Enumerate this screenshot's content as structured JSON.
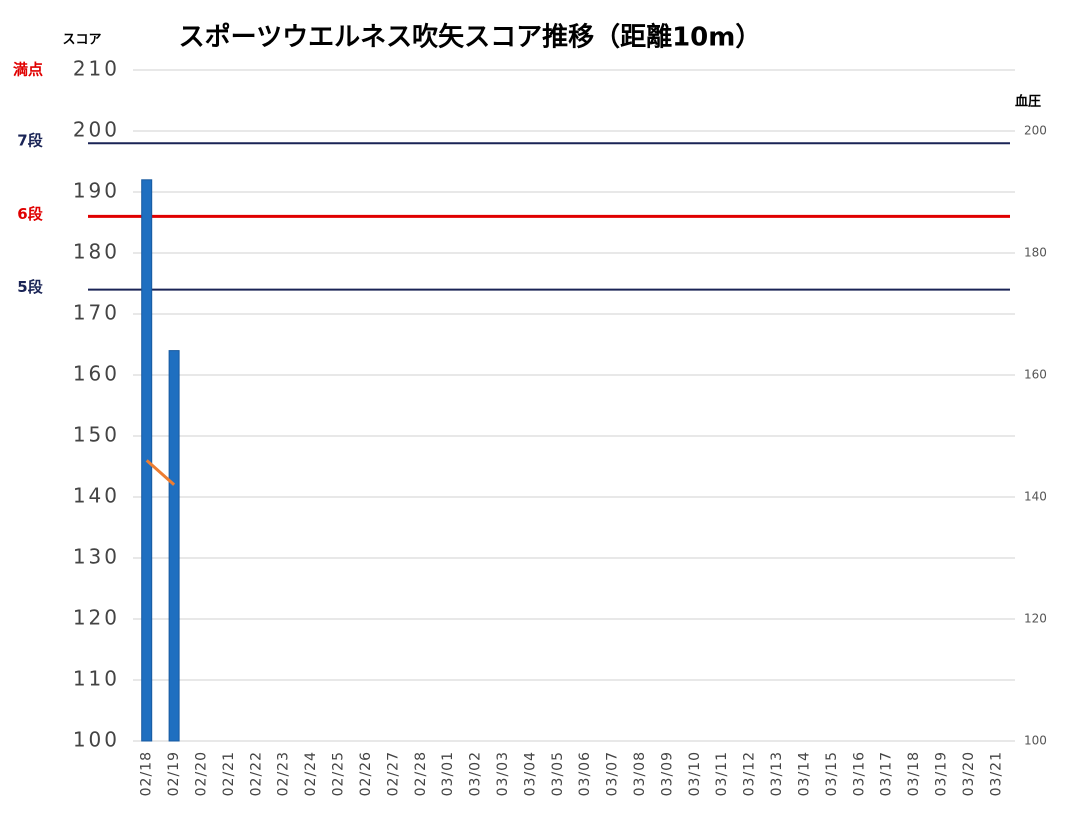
{
  "chart_data": {
    "type": "bar",
    "title": "スポーツウエルネス吹矢スコア推移（距離10m）",
    "y_label": "スコア",
    "y2_label": "血圧",
    "categories": [
      "02/18",
      "02/19",
      "02/20",
      "02/21",
      "02/22",
      "02/23",
      "02/24",
      "02/25",
      "02/26",
      "02/27",
      "02/28",
      "03/01",
      "03/02",
      "03/03",
      "03/04",
      "03/05",
      "03/06",
      "03/07",
      "03/08",
      "03/09",
      "03/10",
      "03/11",
      "03/12",
      "03/13",
      "03/14",
      "03/15",
      "03/16",
      "03/17",
      "03/18",
      "03/19",
      "03/20",
      "03/21"
    ],
    "series": [
      {
        "name": "スコア",
        "type": "bar",
        "color": "#1f6fc0",
        "values": [
          192,
          164,
          null,
          null,
          null,
          null,
          null,
          null,
          null,
          null,
          null,
          null,
          null,
          null,
          null,
          null,
          null,
          null,
          null,
          null,
          null,
          null,
          null,
          null,
          null,
          null,
          null,
          null,
          null,
          null,
          null,
          null
        ]
      },
      {
        "name": "血圧",
        "type": "line",
        "axis": "y2",
        "color": "#ed7d31",
        "values": [
          146,
          142,
          null,
          null,
          null,
          null,
          null,
          null,
          null,
          null,
          null,
          null,
          null,
          null,
          null,
          null,
          null,
          null,
          null,
          null,
          null,
          null,
          null,
          null,
          null,
          null,
          null,
          null,
          null,
          null,
          null,
          null
        ]
      }
    ],
    "ylim": [
      100,
      210
    ],
    "yticks": [
      100,
      110,
      120,
      130,
      140,
      150,
      160,
      170,
      180,
      190,
      200,
      210
    ],
    "y2lim": [
      100,
      210
    ],
    "y2ticks": [
      100,
      120,
      140,
      160,
      180,
      200
    ],
    "grid": true,
    "full_score": {
      "label": "満点",
      "value": 210,
      "color": "#e00000"
    },
    "reference_lines": [
      {
        "label": "7段",
        "value": 198,
        "color": "#1a2456"
      },
      {
        "label": "6段",
        "value": 186,
        "color": "#e00000"
      },
      {
        "label": "5段",
        "value": 174,
        "color": "#1a2456"
      }
    ]
  }
}
